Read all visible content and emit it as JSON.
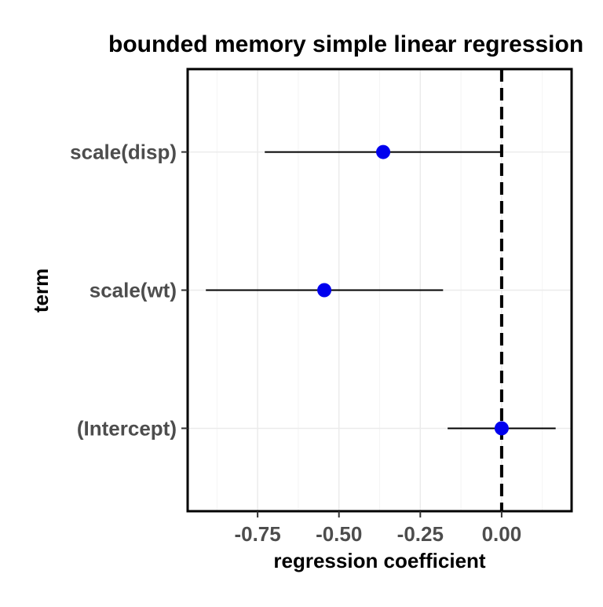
{
  "chart_data": {
    "type": "forest",
    "title": "bounded memory simple linear regression",
    "xlabel": "regression coefficient",
    "ylabel": "term",
    "categories": [
      "(Intercept)",
      "scale(wt)",
      "scale(disp)"
    ],
    "estimates": [
      0.0,
      -0.545,
      -0.364
    ],
    "ci_lower": [
      -0.166,
      -0.909,
      -0.728
    ],
    "ci_upper": [
      0.166,
      -0.18,
      0.0
    ],
    "xlim": [
      -0.965,
      0.215
    ],
    "xticks": [
      -0.75,
      -0.5,
      -0.25,
      0.0
    ],
    "xtick_labels": [
      "-0.75",
      "-0.50",
      "-0.25",
      "0.00"
    ],
    "reference_line": 0.0,
    "grid": true,
    "legend": "none",
    "colors": {
      "point": "#0000ee",
      "errorbar": "#000000",
      "reference": "#000000",
      "grid": "#ebebeb",
      "axis_text": "#4d4d4d"
    }
  }
}
